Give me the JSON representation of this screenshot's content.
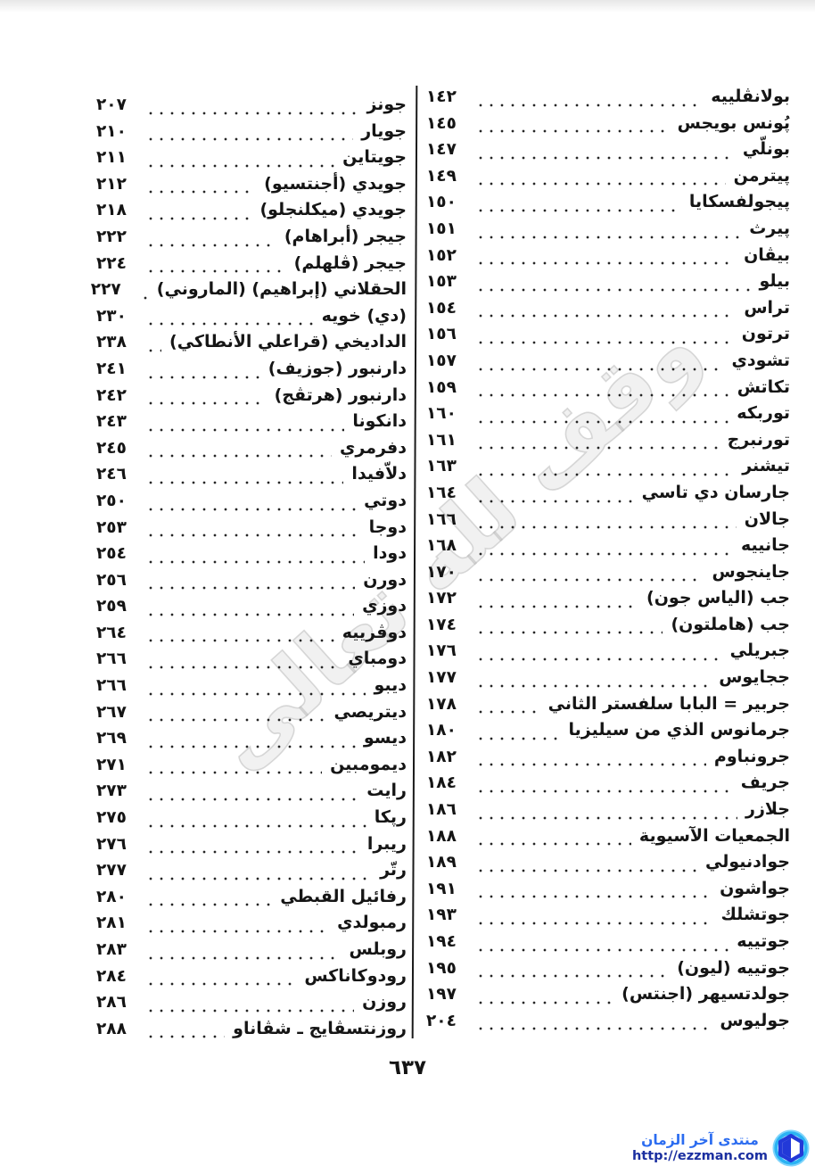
{
  "page": {
    "number_display": "٦٣٧"
  },
  "watermark": {
    "text": "وقف لله تعالى"
  },
  "index": {
    "right_column": {
      "entries": [
        {
          "name": "بولانڤلييه",
          "page": "١٤٢"
        },
        {
          "name": "پُونس بويجس",
          "page": "١٤٥"
        },
        {
          "name": "بونلّي",
          "page": "١٤٧"
        },
        {
          "name": "پيترمن",
          "page": "١٤٩"
        },
        {
          "name": "پيجولفسكايا",
          "page": "١٥٠"
        },
        {
          "name": "پيرث",
          "page": "١٥١"
        },
        {
          "name": "بيڤان",
          "page": "١٥٢"
        },
        {
          "name": "بيلو",
          "page": "١٥٣"
        },
        {
          "name": "تراس",
          "page": "١٥٤"
        },
        {
          "name": "ترتون",
          "page": "١٥٦"
        },
        {
          "name": "تشودي",
          "page": "١٥٧"
        },
        {
          "name": "تكاتش",
          "page": "١٥٩"
        },
        {
          "name": "توربكه",
          "page": "١٦٠"
        },
        {
          "name": "تورنبرج",
          "page": "١٦١"
        },
        {
          "name": "تيشنر",
          "page": "١٦٣"
        },
        {
          "name": "جارسان دي تاسي",
          "page": "١٦٤"
        },
        {
          "name": "جالان",
          "page": "١٦٦"
        },
        {
          "name": "جانييه",
          "page": "١٦٨"
        },
        {
          "name": "جاينجوس",
          "page": "١٧٠"
        },
        {
          "name": "جب (الياس جون)",
          "page": "١٧٢"
        },
        {
          "name": "جب (هاملتون)",
          "page": "١٧٤"
        },
        {
          "name": "جبريلي",
          "page": "١٧٦"
        },
        {
          "name": "ججايوس",
          "page": "١٧٧"
        },
        {
          "name": "جربير = البابا سلفستر الثاني",
          "page": "١٧٨"
        },
        {
          "name": "جرمانوس الذي من سيليزيا",
          "page": "١٨٠"
        },
        {
          "name": "جرونباوم",
          "page": "١٨٢"
        },
        {
          "name": "جريف",
          "page": "١٨٤"
        },
        {
          "name": "جلازر",
          "page": "١٨٦"
        },
        {
          "name": "الجمعيات الآسيوية",
          "page": "١٨٨"
        },
        {
          "name": "جوادنيولي",
          "page": "١٨٩"
        },
        {
          "name": "جواشون",
          "page": "١٩١"
        },
        {
          "name": "جوتشلك",
          "page": "١٩٣"
        },
        {
          "name": "جوتييه",
          "page": "١٩٤"
        },
        {
          "name": "جوتييه (ليون)",
          "page": "١٩٥"
        },
        {
          "name": "جولدتسيهر (اجنتس)",
          "page": "١٩٧"
        },
        {
          "name": "جوليوس",
          "page": "٢٠٤"
        }
      ]
    },
    "left_column": {
      "entries": [
        {
          "name": "جونز",
          "page": "٢٠٧"
        },
        {
          "name": "جويار",
          "page": "٢١٠"
        },
        {
          "name": "جويتاين",
          "page": "٢١١"
        },
        {
          "name": "جويدي (أجنتسيو)",
          "page": "٢١٢"
        },
        {
          "name": "جويدي (ميكلنجلو)",
          "page": "٢١٨"
        },
        {
          "name": "جيجر (أبراهام)",
          "page": "٢٢٢"
        },
        {
          "name": "جيجر (ڤلهلم)",
          "page": "٢٢٤"
        },
        {
          "name": "الحقلاني (إبراهيم) (الماروني)",
          "page": "٢٢٧"
        },
        {
          "name": "(دي) خويه",
          "page": "٢٣٠"
        },
        {
          "name": "الداديخي (قراعلي الأنطاكي)",
          "page": "٢٣٨"
        },
        {
          "name": "دارنبور (جوزيف)",
          "page": "٢٤١"
        },
        {
          "name": "دارنبور (هرتڤج)",
          "page": "٢٤٢"
        },
        {
          "name": "دانكونا",
          "page": "٢٤٣"
        },
        {
          "name": "دفرمري",
          "page": "٢٤٥"
        },
        {
          "name": "دلاّفيدا",
          "page": "٢٤٦"
        },
        {
          "name": "دوتي",
          "page": "٢٥٠"
        },
        {
          "name": "دوجا",
          "page": "٢٥٣"
        },
        {
          "name": "دودا",
          "page": "٢٥٤"
        },
        {
          "name": "دورن",
          "page": "٢٥٦"
        },
        {
          "name": "دوزي",
          "page": "٢٥٩"
        },
        {
          "name": "دوڤرييه",
          "page": "٢٦٤"
        },
        {
          "name": "دومباي",
          "page": "٢٦٦"
        },
        {
          "name": "ديبو",
          "page": "٢٦٦"
        },
        {
          "name": "ديتريصي",
          "page": "٢٦٧"
        },
        {
          "name": "ديسو",
          "page": "٢٦٩"
        },
        {
          "name": "ديمومبين",
          "page": "٢٧١"
        },
        {
          "name": "رايت",
          "page": "٢٧٣"
        },
        {
          "name": "رپكا",
          "page": "٢٧٥"
        },
        {
          "name": "ريبرا",
          "page": "٢٧٦"
        },
        {
          "name": "رتّر",
          "page": "٢٧٧"
        },
        {
          "name": "رفائيل القبطي",
          "page": "٢٨٠"
        },
        {
          "name": "رمبولدي",
          "page": "٢٨١"
        },
        {
          "name": "روبلس",
          "page": "٢٨٣"
        },
        {
          "name": "رودوكاناكس",
          "page": "٢٨٤"
        },
        {
          "name": "روزن",
          "page": "٢٨٦"
        },
        {
          "name": "روزنتسڤايج ـ شڤاناو",
          "page": "٢٨٨"
        }
      ]
    }
  },
  "footer": {
    "site_name": "منتدى آخر الزمان",
    "site_url": "http://ezzman.com",
    "logo_icon": "hexagon-in-circle",
    "colors": {
      "site_name_blue": "#2b6cf0",
      "url_navy": "#1b2fa0",
      "logo_azure": "#2bb3f3",
      "logo_royal": "#2239d8"
    }
  }
}
